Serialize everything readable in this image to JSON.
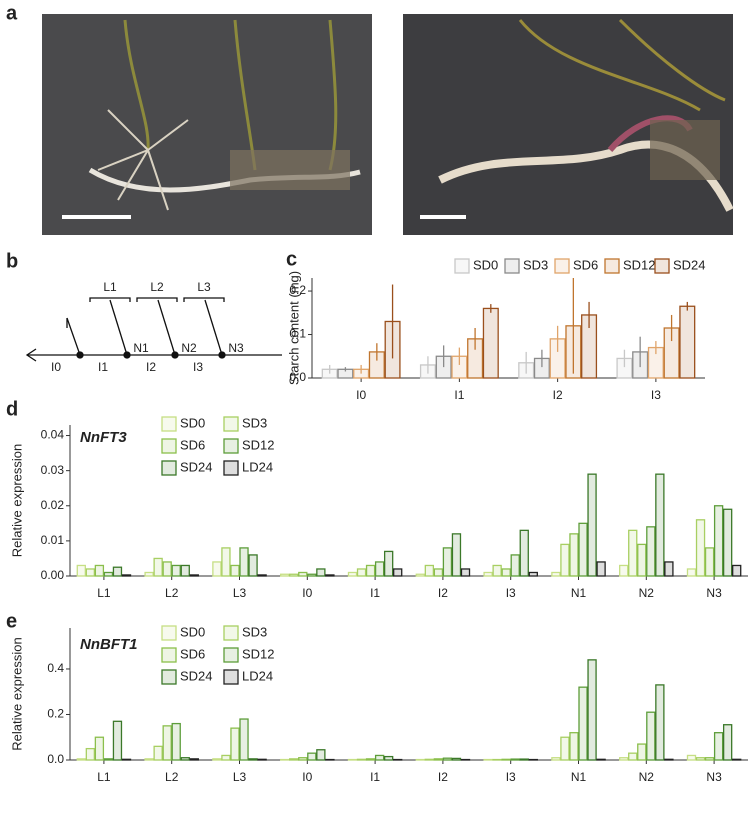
{
  "panels": [
    "a",
    "b",
    "c",
    "d",
    "e"
  ],
  "diagram": {
    "leaves": [
      "L1",
      "L2",
      "L3"
    ],
    "nodes": [
      "N1",
      "N2",
      "N3"
    ],
    "internodes": [
      "I0",
      "I1",
      "I2",
      "I3"
    ]
  },
  "chart_data": [
    {
      "type": "bar",
      "ylabel": "Starch content (mg)",
      "categories": [
        "I0",
        "I1",
        "I2",
        "I3"
      ],
      "ylim": [
        0,
        0.23
      ],
      "yticks": [
        {
          "value": 0,
          "label": "0.0"
        },
        0.1,
        0.2
      ],
      "series": [
        {
          "name": "SD0",
          "color": "#c8c8c8",
          "values": [
            0.02,
            0.03,
            0.035,
            0.045
          ],
          "errors": [
            0.01,
            0.02,
            0.025,
            0.02
          ]
        },
        {
          "name": "SD3",
          "color": "#8a8a8a",
          "values": [
            0.02,
            0.05,
            0.045,
            0.06
          ],
          "errors": [
            0.005,
            0.025,
            0.02,
            0.035
          ]
        },
        {
          "name": "SD6",
          "color": "#e0a46a",
          "values": [
            0.02,
            0.05,
            0.09,
            0.07
          ],
          "errors": [
            0.01,
            0.02,
            0.03,
            0.015
          ]
        },
        {
          "name": "SD12",
          "color": "#c0752e",
          "values": [
            0.06,
            0.09,
            0.12,
            0.115
          ],
          "errors": [
            0.02,
            0.025,
            0.11,
            0.03
          ]
        },
        {
          "name": "SD24",
          "color": "#9a4f1c",
          "values": [
            0.13,
            0.16,
            0.145,
            0.165
          ],
          "errors": [
            0.085,
            0.01,
            0.03,
            0.01
          ]
        }
      ]
    },
    {
      "type": "bar",
      "title": "NnFT3",
      "ylabel": "Relative expression",
      "categories": [
        "L1",
        "L2",
        "L3",
        "I0",
        "I1",
        "I2",
        "I3",
        "N1",
        "N2",
        "N3"
      ],
      "ylim": [
        0,
        0.043
      ],
      "yticks": [
        {
          "value": 0,
          "label": "0.00"
        },
        0.01,
        0.02,
        0.03,
        0.04
      ],
      "series": [
        {
          "name": "SD0",
          "color": "#c6df84",
          "values": [
            0.003,
            0.001,
            0.004,
            0.0005,
            0.001,
            0.0005,
            0.001,
            0.001,
            0.003,
            0.002
          ]
        },
        {
          "name": "SD3",
          "color": "#a8cf62",
          "values": [
            0.002,
            0.005,
            0.008,
            0.0005,
            0.002,
            0.003,
            0.003,
            0.009,
            0.013,
            0.016
          ]
        },
        {
          "name": "SD6",
          "color": "#8bbf4c",
          "values": [
            0.003,
            0.004,
            0.003,
            0.001,
            0.003,
            0.002,
            0.002,
            0.012,
            0.009,
            0.008
          ]
        },
        {
          "name": "SD12",
          "color": "#5d9d3a",
          "values": [
            0.001,
            0.003,
            0.008,
            0.0005,
            0.004,
            0.008,
            0.006,
            0.015,
            0.014,
            0.02
          ]
        },
        {
          "name": "SD24",
          "color": "#3b7829",
          "values": [
            0.0025,
            0.003,
            0.006,
            0.002,
            0.007,
            0.012,
            0.013,
            0.029,
            0.029,
            0.019
          ]
        },
        {
          "name": "LD24",
          "color": "#222222",
          "values": [
            0.0003,
            0.0003,
            0.0003,
            0.0003,
            0.002,
            0.002,
            0.001,
            0.004,
            0.004,
            0.003
          ]
        }
      ]
    },
    {
      "type": "bar",
      "title": "NnBFT1",
      "ylabel": "Relative expression",
      "categories": [
        "L1",
        "L2",
        "L3",
        "I0",
        "I1",
        "I2",
        "I3",
        "N1",
        "N2",
        "N3"
      ],
      "ylim": [
        0,
        0.58
      ],
      "yticks": [
        {
          "value": 0,
          "label": "0.0"
        },
        0.2,
        0.4
      ],
      "series": [
        {
          "name": "SD0",
          "color": "#c6df84",
          "values": [
            0.005,
            0.005,
            0.005,
            0.002,
            0.002,
            0.002,
            0.002,
            0.01,
            0.01,
            0.02
          ]
        },
        {
          "name": "SD3",
          "color": "#a8cf62",
          "values": [
            0.05,
            0.06,
            0.02,
            0.005,
            0.003,
            0.003,
            0.002,
            0.1,
            0.03,
            0.01
          ]
        },
        {
          "name": "SD6",
          "color": "#8bbf4c",
          "values": [
            0.1,
            0.15,
            0.14,
            0.01,
            0.005,
            0.005,
            0.003,
            0.12,
            0.07,
            0.01
          ]
        },
        {
          "name": "SD12",
          "color": "#5d9d3a",
          "values": [
            0.005,
            0.16,
            0.18,
            0.03,
            0.02,
            0.008,
            0.004,
            0.32,
            0.21,
            0.12
          ]
        },
        {
          "name": "SD24",
          "color": "#3b7829",
          "values": [
            0.17,
            0.01,
            0.005,
            0.045,
            0.015,
            0.007,
            0.004,
            0.44,
            0.33,
            0.155
          ]
        },
        {
          "name": "LD24",
          "color": "#222222",
          "values": [
            0.003,
            0.005,
            0.003,
            0.002,
            0.002,
            0.002,
            0.002,
            0.003,
            0.003,
            0.003
          ]
        }
      ]
    }
  ]
}
